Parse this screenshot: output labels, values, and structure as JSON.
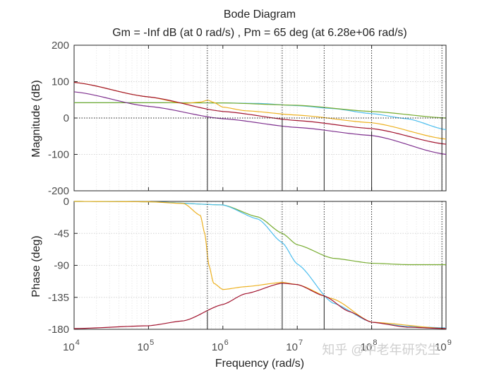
{
  "chart_data": {
    "type": "line",
    "title": "Bode Diagram",
    "subtitle": "Gm = -Inf dB (at 0 rad/s) ,  Pm = 65 deg (at 6.28e+06 rad/s)",
    "xlabel": "Frequency  (rad/s)",
    "xscale": "log",
    "xlim": [
      10000,
      1000000000
    ],
    "x_ticks": [
      {
        "base": "10",
        "exp": "4"
      },
      {
        "base": "10",
        "exp": "5"
      },
      {
        "base": "10",
        "exp": "6"
      },
      {
        "base": "10",
        "exp": "7"
      },
      {
        "base": "10",
        "exp": "8"
      },
      {
        "base": "10",
        "exp": "9"
      }
    ],
    "grid": true,
    "colors": {
      "teal": "#4dbeee",
      "green": "#77ac30",
      "yellow": "#edb120",
      "maroon": "#a2142f",
      "purple": "#7e2f8e"
    },
    "magnitude": {
      "ylabel": "Magnitude (dB)",
      "ylim": [
        -200,
        200
      ],
      "y_ticks": [
        "200",
        "100",
        "0",
        "-100",
        "-200"
      ],
      "series": [
        {
          "name": "teal",
          "color": "teal",
          "x": [
            10000,
            100000,
            1000000,
            3000000,
            10000000,
            30000000,
            100000000,
            300000000,
            1000000000
          ],
          "y": [
            42,
            42,
            41.5,
            40,
            34,
            26,
            12,
            -2,
            -32
          ]
        },
        {
          "name": "green",
          "color": "green",
          "x": [
            10000,
            100000,
            1000000,
            10000000,
            100000000,
            1000000000
          ],
          "y": [
            42,
            42,
            41.5,
            35,
            18,
            0
          ]
        },
        {
          "name": "yellow",
          "color": "yellow",
          "x": [
            10000,
            100000,
            300000,
            500000,
            630000,
            750000,
            1000000,
            2000000,
            10000000,
            100000000,
            1000000000
          ],
          "y": [
            98,
            58,
            40,
            44,
            49,
            43,
            30,
            20,
            8,
            -13,
            -58
          ]
        },
        {
          "name": "maroon",
          "color": "maroon",
          "x": [
            10000,
            100000,
            1000000,
            10000000,
            100000000,
            1000000000
          ],
          "y": [
            98,
            58,
            18,
            -7,
            -29,
            -72
          ]
        },
        {
          "name": "purple",
          "color": "purple",
          "x": [
            10000,
            100000,
            1000000,
            10000000,
            100000000,
            1000000000
          ],
          "y": [
            72,
            32,
            -2,
            -26,
            -48,
            -100
          ]
        }
      ],
      "markers": [
        {
          "x": 620000,
          "y": 0
        },
        {
          "x": 6280000,
          "y": 0
        },
        {
          "x": 23000000,
          "y": -36
        },
        {
          "x": 100000000,
          "y": -36
        },
        {
          "x": 880000000,
          "y": 0
        }
      ]
    },
    "phase": {
      "ylabel": "Phase (deg)",
      "ylim": [
        -180,
        0
      ],
      "y_ticks": [
        "0",
        "-45",
        "-90",
        "-135",
        "-180"
      ],
      "series": [
        {
          "name": "green",
          "color": "green",
          "x": [
            10000,
            100000,
            1000000,
            3000000,
            6280000,
            10000000,
            30000000,
            100000000,
            300000000,
            1000000000
          ],
          "y": [
            0,
            -0.5,
            -5,
            -22,
            -45,
            -61,
            -80,
            -87,
            -89,
            -89
          ]
        },
        {
          "name": "teal",
          "color": "teal",
          "x": [
            10000,
            100000,
            1000000,
            3000000,
            6280000,
            10000000,
            30000000,
            100000000,
            300000000,
            1000000000
          ],
          "y": [
            0,
            -0.5,
            -5,
            -25,
            -58,
            -88,
            -143,
            -170,
            -176,
            -178
          ]
        },
        {
          "name": "yellow",
          "color": "yellow",
          "x": [
            10000,
            100000,
            300000,
            500000,
            570000,
            650000,
            750000,
            1000000,
            2000000,
            6280000,
            10000000,
            30000000,
            100000000,
            1000000000
          ],
          "y": [
            0,
            -0.5,
            -3,
            -20,
            -45,
            -90,
            -115,
            -124,
            -120,
            -114,
            -117,
            -137,
            -170,
            -179
          ]
        },
        {
          "name": "maroon",
          "color": "maroon",
          "x": [
            10000,
            100000,
            300000,
            1000000,
            2000000,
            6280000,
            10000000,
            23000000,
            50000000,
            100000000,
            300000000,
            1000000000
          ],
          "y": [
            -179,
            -175,
            -168,
            -145,
            -130,
            -115,
            -117,
            -133,
            -155,
            -170,
            -177,
            -179
          ]
        }
      ],
      "markers": [
        {
          "x": 620000,
          "y": -155
        },
        {
          "x": 6280000,
          "y": -115
        },
        {
          "x": 23000000,
          "y": -133
        },
        {
          "x": 100000000,
          "y": -178
        },
        {
          "x": 880000000,
          "y": -90
        }
      ]
    },
    "watermark": "知乎 @中老年研究生"
  }
}
